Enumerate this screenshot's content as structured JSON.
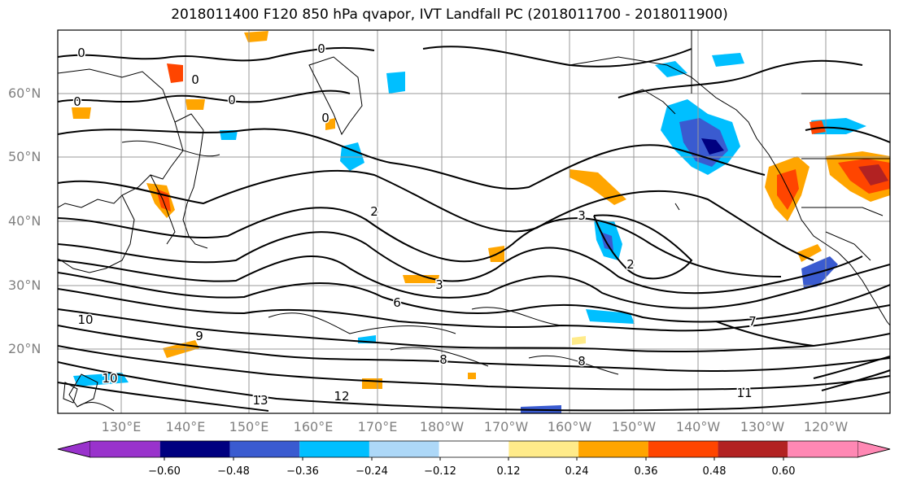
{
  "title": "2018011400 F120 850 hPa qvapor, IVT Landfall PC (2018011700 - 2018011900)",
  "map": {
    "lat_labels": [
      "60°N",
      "50°N",
      "40°N",
      "30°N",
      "20°N"
    ],
    "lon_labels": [
      "130°E",
      "140°E",
      "150°E",
      "160°E",
      "170°E",
      "180°W",
      "170°W",
      "160°W",
      "150°W",
      "140°W",
      "130°W",
      "120°W"
    ],
    "contour_labels": [
      "0",
      "0",
      "0",
      "0",
      "0",
      "0",
      "2",
      "2",
      "3",
      "3",
      "6",
      "8",
      "8",
      "9",
      "10",
      "10",
      "11",
      "12",
      "13",
      "7"
    ]
  },
  "colorbar": {
    "colors": [
      "#9932cc",
      "#000080",
      "#3a5bd0",
      "#00bfff",
      "#add8f8",
      "#ffffff",
      "#ffeb8a",
      "#ffa500",
      "#ff4500",
      "#b22222",
      "#ff88b4"
    ],
    "tick_labels": [
      "−0.60",
      "−0.48",
      "−0.36",
      "−0.24",
      "−0.12",
      "0.12",
      "0.24",
      "0.36",
      "0.48",
      "0.60"
    ],
    "extend": "both"
  }
}
